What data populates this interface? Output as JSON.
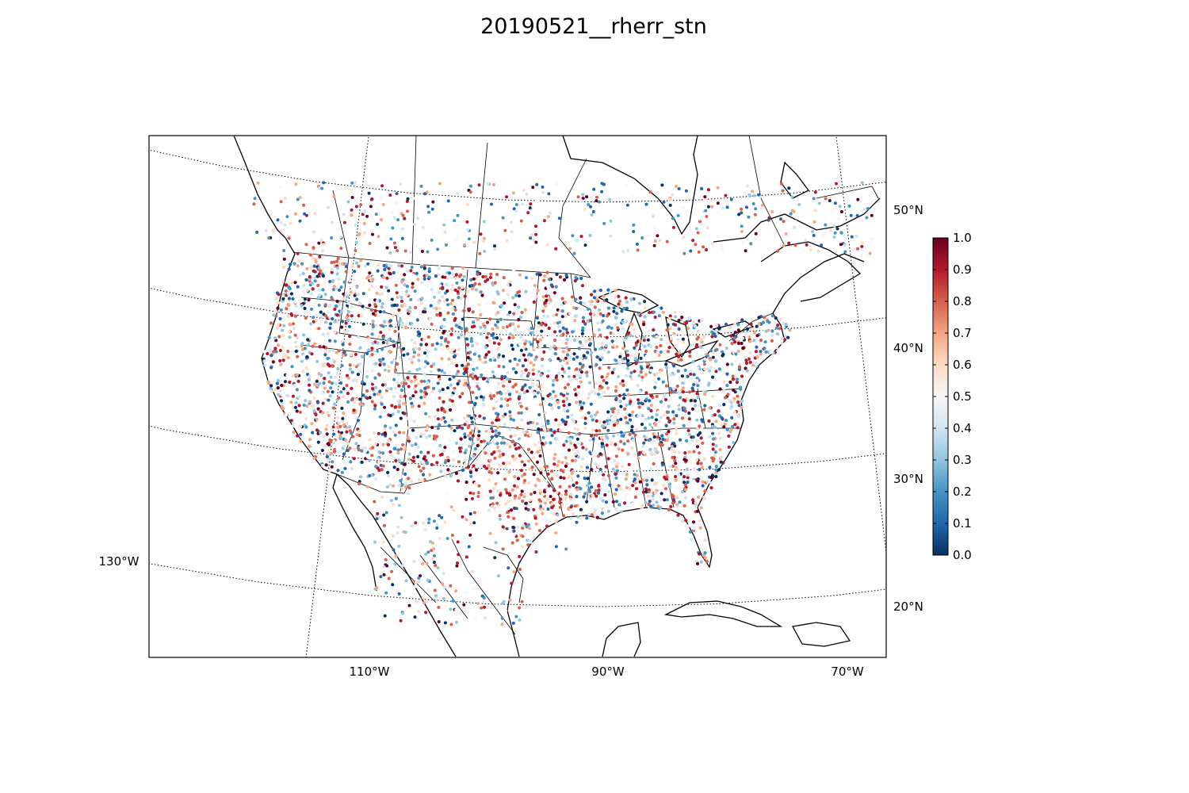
{
  "title": "20190521__rherr_stn",
  "map": {
    "projection": "lambert-conformal",
    "frame": "black",
    "parallels": [
      {
        "lat": 50,
        "label": "50°N"
      },
      {
        "lat": 40,
        "label": "40°N"
      },
      {
        "lat": 30,
        "label": "30°N"
      },
      {
        "lat": 20,
        "label": "20°N"
      }
    ],
    "meridians": [
      {
        "lon": -130,
        "label": "130°W"
      },
      {
        "lon": -110,
        "label": "110°W"
      },
      {
        "lon": -90,
        "label": "90°W"
      },
      {
        "lon": -70,
        "label": "70°W"
      }
    ],
    "coastline_color": "#000000",
    "border_color": "#000000"
  },
  "colorbar": {
    "cmap": "RdBu_r",
    "vmin": 0.0,
    "vmax": 1.0,
    "ticks": [
      "0.0",
      "0.1",
      "0.2",
      "0.3",
      "0.4",
      "0.5",
      "0.6",
      "0.7",
      "0.8",
      "0.9",
      "1.0"
    ],
    "colors": [
      "#053061",
      "#2166ac",
      "#4393c3",
      "#92c5de",
      "#d1e5f0",
      "#f7f7f7",
      "#fddbc7",
      "#f4a582",
      "#d6604d",
      "#b2182b",
      "#67001f"
    ]
  },
  "stations": {
    "variable": "rherr_stn",
    "value_range": [
      0.0,
      1.0
    ],
    "note_density": "dense across CONUS, sparse in Canada and Mexico"
  }
}
